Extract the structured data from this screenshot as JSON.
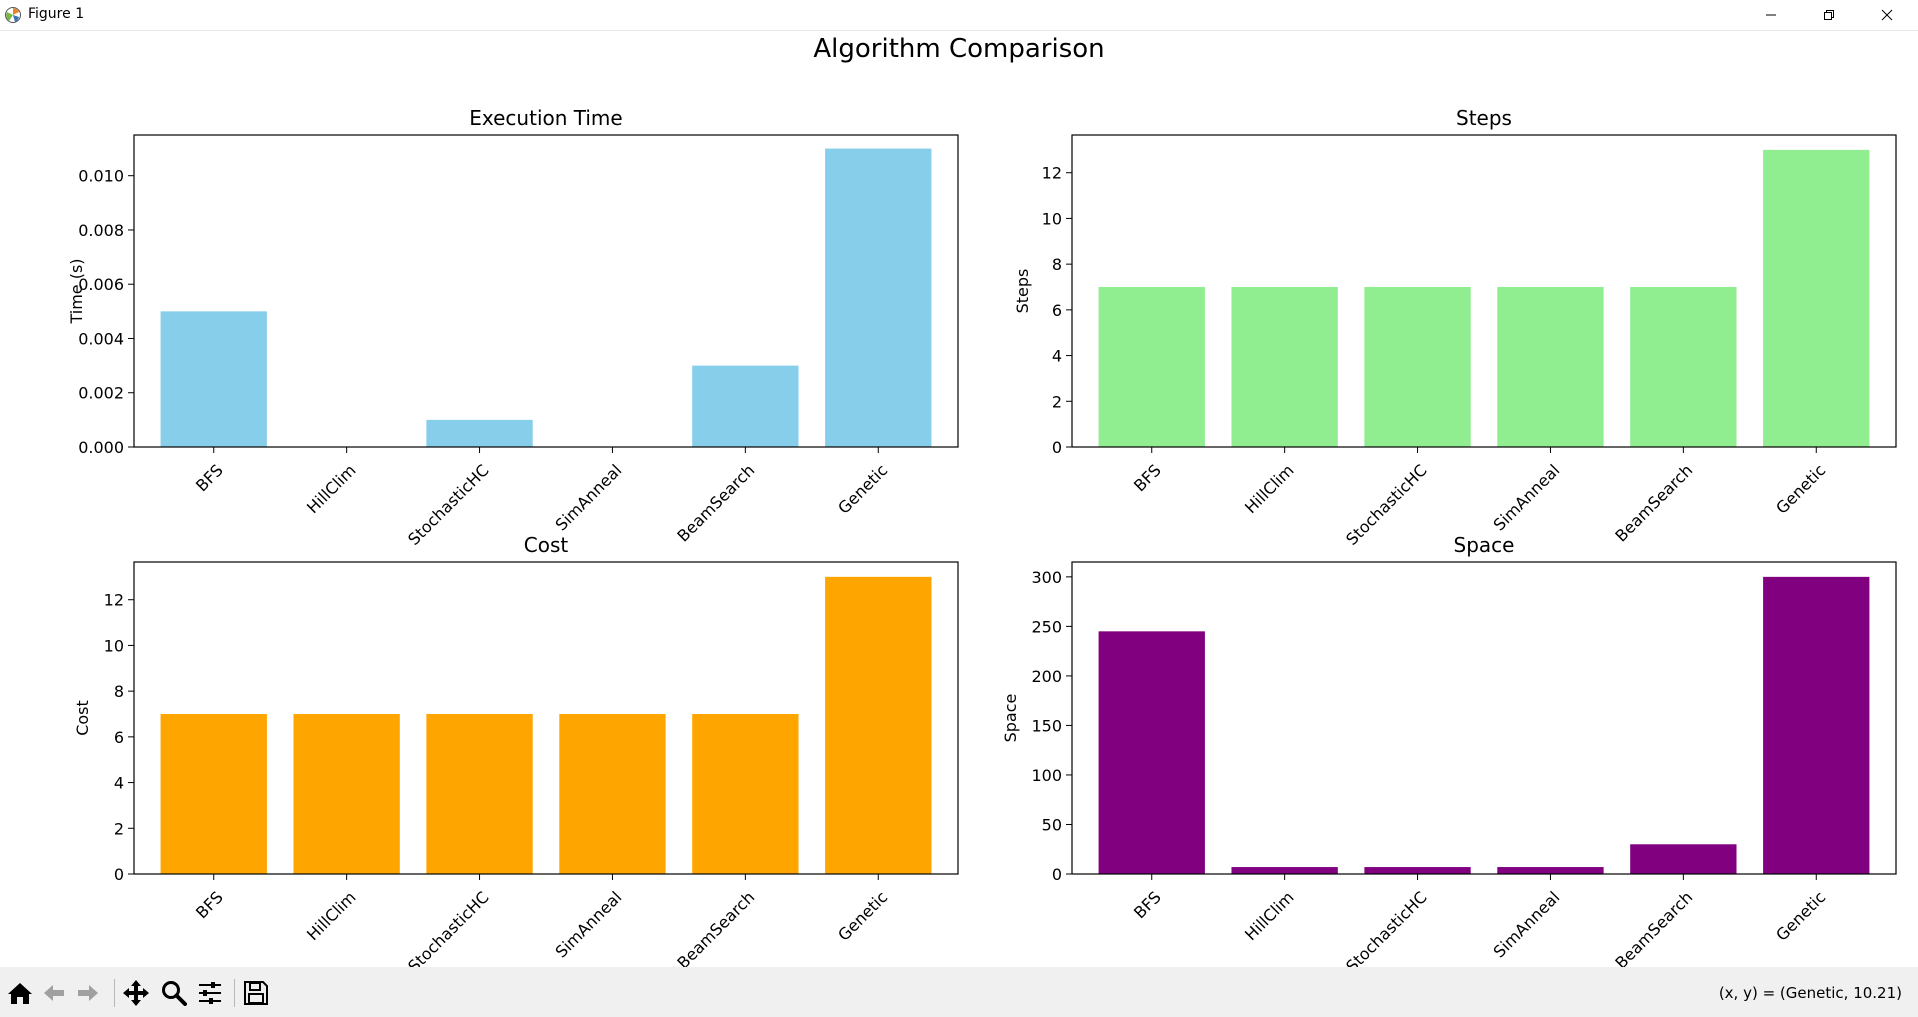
{
  "window": {
    "title": "Figure 1"
  },
  "figure": {
    "suptitle": "Algorithm Comparison"
  },
  "toolbar": {
    "tools": [
      "home-icon",
      "back-arrow-icon",
      "forward-arrow-icon",
      "pan-icon",
      "zoom-icon",
      "configure-subplots-icon",
      "save-icon"
    ],
    "coordinates": "(x, y) = (Genetic, 10.21)"
  },
  "chart_data": [
    {
      "type": "bar",
      "title": "Execution Time",
      "xlabel": "",
      "ylabel": "Time (s)",
      "categories": [
        "BFS",
        "HillClim",
        "StochasticHC",
        "SimAnneal",
        "BeamSearch",
        "Genetic"
      ],
      "values": [
        0.005,
        0.0,
        0.001,
        0.0,
        0.003,
        0.011
      ],
      "ylim": [
        0,
        0.0115
      ],
      "yticks": [
        0.0,
        0.002,
        0.004,
        0.006,
        0.008,
        0.01
      ],
      "ytick_labels": [
        "0.000",
        "0.002",
        "0.004",
        "0.006",
        "0.008",
        "0.010"
      ],
      "color": "#87ceeb"
    },
    {
      "type": "bar",
      "title": "Steps",
      "xlabel": "",
      "ylabel": "Steps",
      "categories": [
        "BFS",
        "HillClim",
        "StochasticHC",
        "SimAnneal",
        "BeamSearch",
        "Genetic"
      ],
      "values": [
        7,
        7,
        7,
        7,
        7,
        13
      ],
      "ylim": [
        0,
        13.65
      ],
      "yticks": [
        0,
        2,
        4,
        6,
        8,
        10,
        12
      ],
      "ytick_labels": [
        "0",
        "2",
        "4",
        "6",
        "8",
        "10",
        "12"
      ],
      "color": "#90ee90"
    },
    {
      "type": "bar",
      "title": "Cost",
      "xlabel": "",
      "ylabel": "Cost",
      "categories": [
        "BFS",
        "HillClim",
        "StochasticHC",
        "SimAnneal",
        "BeamSearch",
        "Genetic"
      ],
      "values": [
        7,
        7,
        7,
        7,
        7,
        13
      ],
      "ylim": [
        0,
        13.65
      ],
      "yticks": [
        0,
        2,
        4,
        6,
        8,
        10,
        12
      ],
      "ytick_labels": [
        "0",
        "2",
        "4",
        "6",
        "8",
        "10",
        "12"
      ],
      "color": "#ffa500"
    },
    {
      "type": "bar",
      "title": "Space",
      "xlabel": "",
      "ylabel": "Space",
      "categories": [
        "BFS",
        "HillClim",
        "StochasticHC",
        "SimAnneal",
        "BeamSearch",
        "Genetic"
      ],
      "values": [
        245,
        7,
        7,
        7,
        30,
        300
      ],
      "ylim": [
        0,
        315
      ],
      "yticks": [
        0,
        50,
        100,
        150,
        200,
        250,
        300
      ],
      "ytick_labels": [
        "0",
        "50",
        "100",
        "150",
        "200",
        "250",
        "300"
      ],
      "color": "#800080"
    }
  ]
}
